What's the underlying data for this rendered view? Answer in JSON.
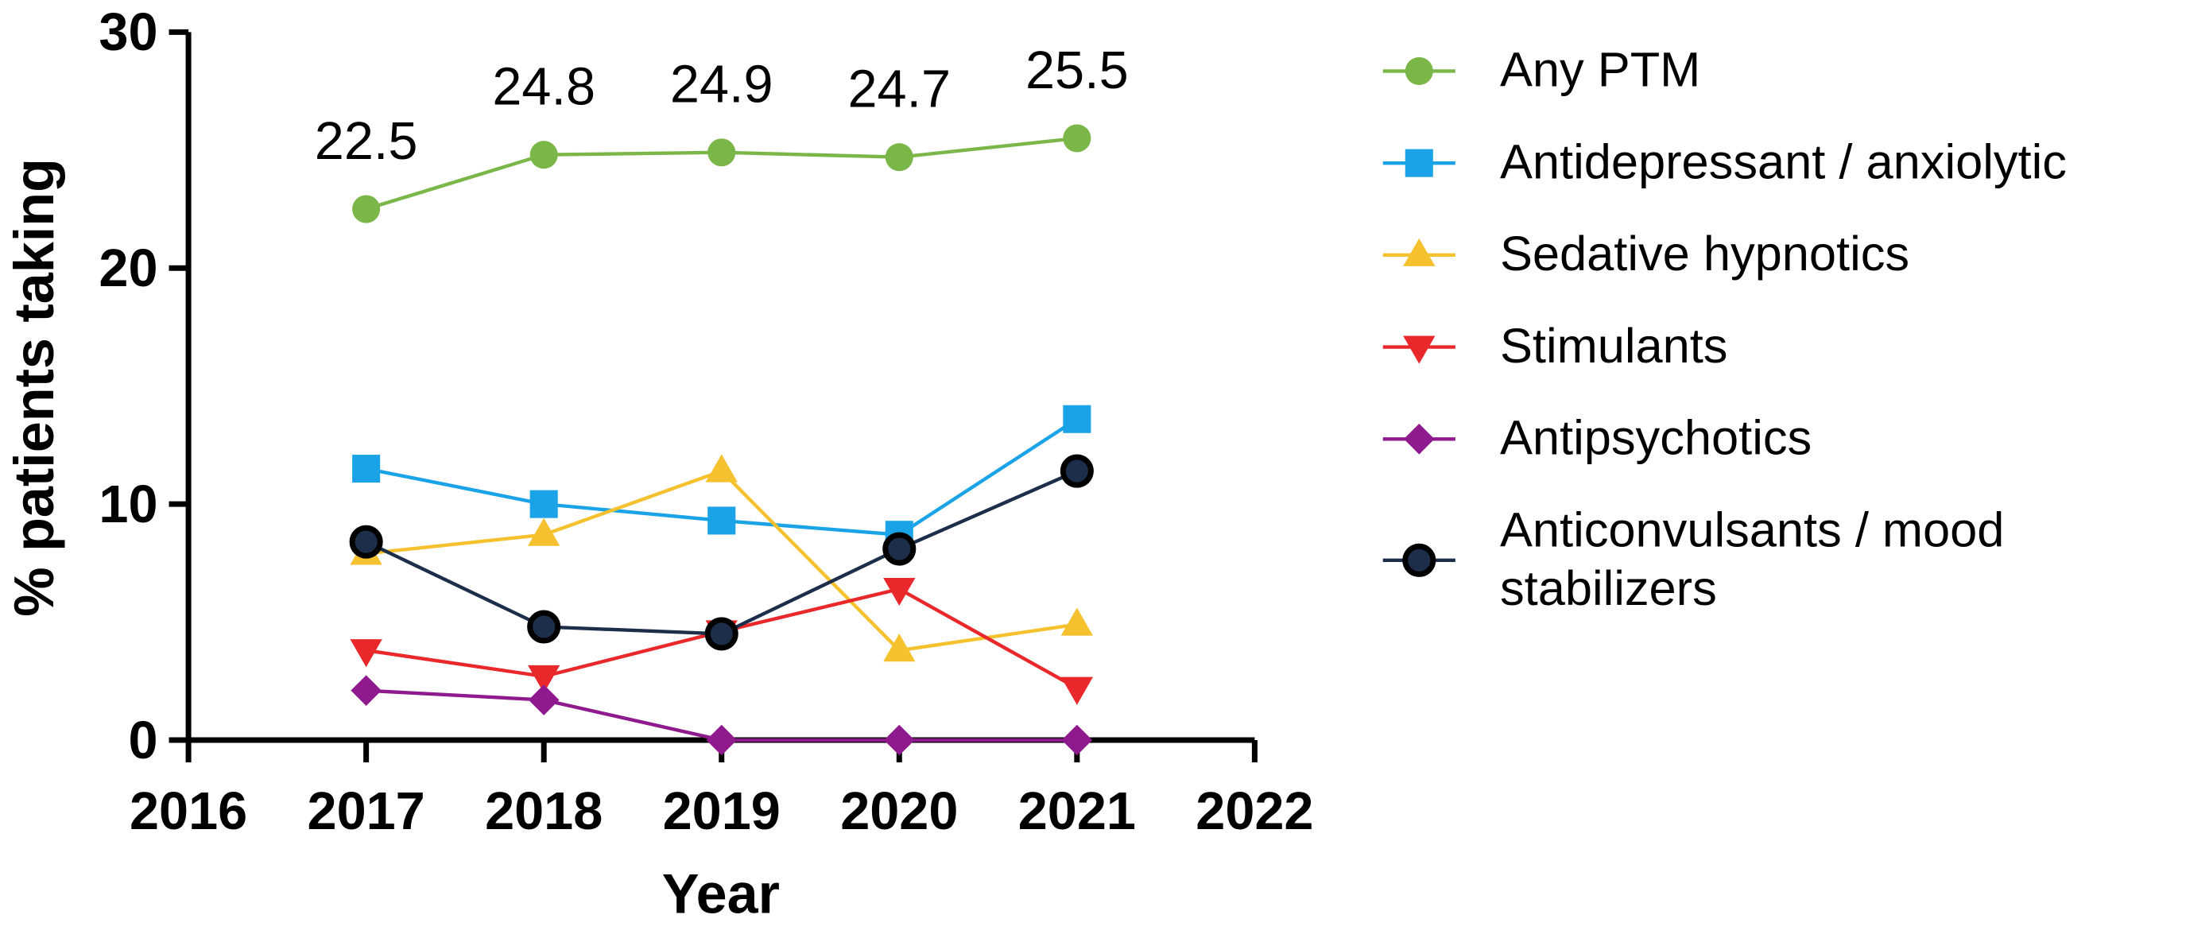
{
  "chart_data": {
    "type": "line",
    "x": [
      2017,
      2018,
      2019,
      2020,
      2021
    ],
    "xlim": [
      2016,
      2022
    ],
    "xticks": [
      2016,
      2017,
      2018,
      2019,
      2020,
      2021,
      2022
    ],
    "ylim": [
      0,
      30
    ],
    "yticks": [
      0,
      10,
      20,
      30
    ],
    "x_label": "Year",
    "y_label": "% patients taking",
    "series": [
      {
        "name": "Any PTM",
        "color": "#7ab648",
        "marker": "circle",
        "data_labels": true,
        "values": [
          22.5,
          24.8,
          24.9,
          24.7,
          25.5
        ]
      },
      {
        "name": "Antidepressant / anxiolytic",
        "color": "#1ba3e8",
        "marker": "square",
        "values": [
          11.5,
          10.0,
          9.3,
          8.7,
          13.6
        ]
      },
      {
        "name": "Sedative hypnotics",
        "color": "#f5c12e",
        "marker": "triangle-up",
        "values": [
          7.9,
          8.7,
          11.4,
          3.8,
          4.9
        ]
      },
      {
        "name": "Stimulants",
        "color": "#e8282a",
        "marker": "triangle-down",
        "values": [
          3.8,
          2.7,
          4.6,
          6.4,
          2.2
        ]
      },
      {
        "name": "Antipsychotics",
        "color": "#8e1a8e",
        "marker": "diamond",
        "values": [
          2.1,
          1.7,
          0,
          0,
          0
        ]
      },
      {
        "name": "Anticonvulsants / mood stabilizers",
        "color": "#1c2e4a",
        "marker": "circle-outlined",
        "values": [
          8.4,
          4.8,
          4.5,
          8.1,
          11.4
        ]
      }
    ]
  }
}
